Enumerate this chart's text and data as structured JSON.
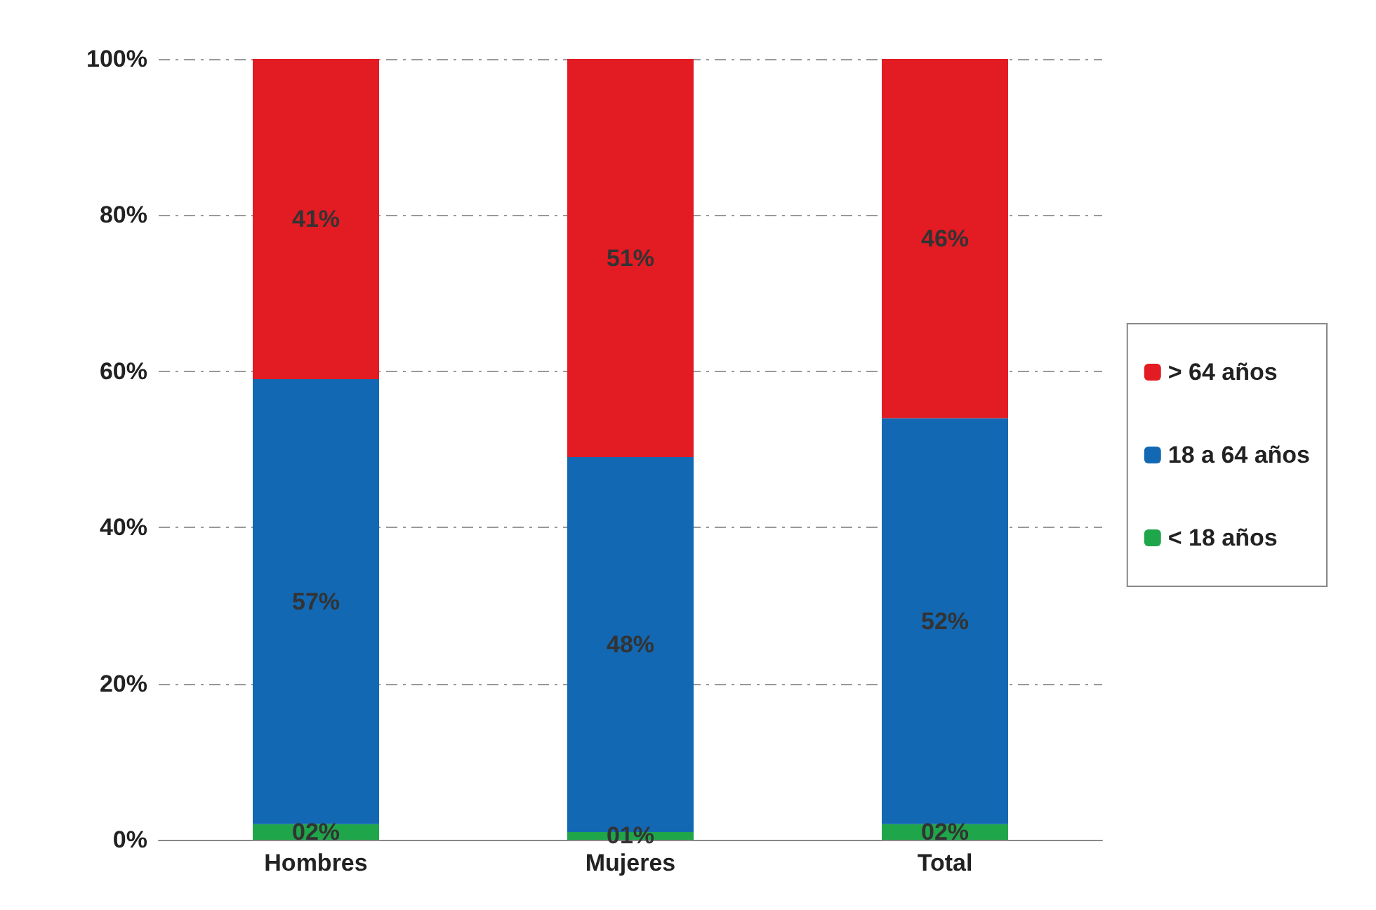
{
  "chart_data": {
    "type": "bar",
    "stacked": true,
    "categories": [
      "Hombres",
      "Mujeres",
      "Total"
    ],
    "series": [
      {
        "name": "< 18 años",
        "color": "#1fa54a",
        "values": [
          2,
          1,
          2
        ],
        "value_labels": [
          "02%",
          "01%",
          "02%"
        ]
      },
      {
        "name": "18 a 64 años",
        "color": "#1268b3",
        "values": [
          57,
          48,
          52
        ],
        "value_labels": [
          "57%",
          "48%",
          "52%"
        ]
      },
      {
        "name": "> 64 años",
        "color": "#e31b23",
        "values": [
          41,
          51,
          46
        ],
        "value_labels": [
          "41%",
          "51%",
          "46%"
        ]
      }
    ],
    "ylim": [
      0,
      100
    ],
    "yticks": [
      {
        "value": 0,
        "label": "0%"
      },
      {
        "value": 20,
        "label": "20%"
      },
      {
        "value": 40,
        "label": "40%"
      },
      {
        "value": 60,
        "label": "60%"
      },
      {
        "value": 80,
        "label": "80%"
      },
      {
        "value": 100,
        "label": "100%"
      }
    ],
    "grid": "y",
    "legend": "right"
  }
}
